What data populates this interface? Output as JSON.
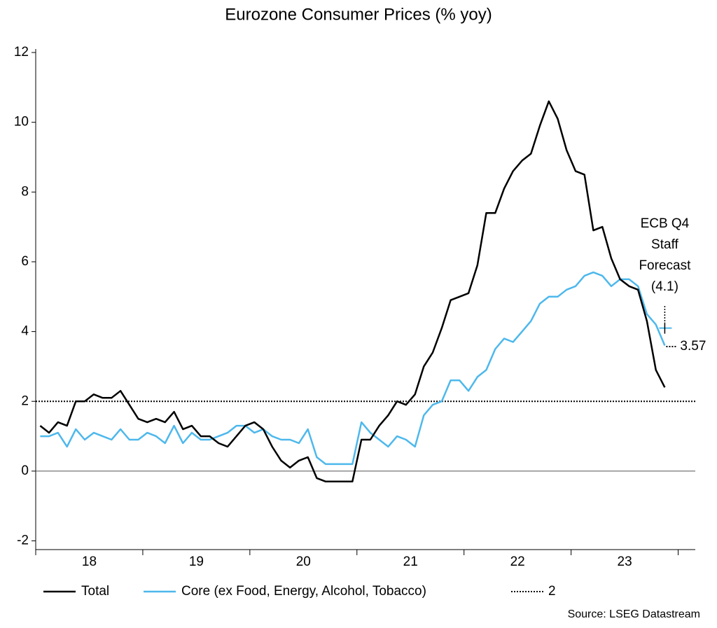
{
  "chart_data": {
    "type": "line",
    "title": "Eurozone Consumer Prices (% yoy)",
    "x": [
      18.042,
      18.125,
      18.208,
      18.292,
      18.375,
      18.458,
      18.542,
      18.625,
      18.708,
      18.792,
      18.875,
      18.958,
      19.042,
      19.125,
      19.208,
      19.292,
      19.375,
      19.458,
      19.542,
      19.625,
      19.708,
      19.792,
      19.875,
      19.958,
      20.042,
      20.125,
      20.208,
      20.292,
      20.375,
      20.458,
      20.542,
      20.625,
      20.708,
      20.792,
      20.875,
      20.958,
      21.042,
      21.125,
      21.208,
      21.292,
      21.375,
      21.458,
      21.542,
      21.625,
      21.708,
      21.792,
      21.875,
      21.958,
      22.042,
      22.125,
      22.208,
      22.292,
      22.375,
      22.458,
      22.542,
      22.625,
      22.708,
      22.792,
      22.875,
      22.958,
      23.042,
      23.125,
      23.208,
      23.292,
      23.375,
      23.458,
      23.542,
      23.625,
      23.708,
      23.792,
      23.875
    ],
    "series": [
      {
        "name": "Total",
        "color": "#000000",
        "values": [
          1.3,
          1.1,
          1.4,
          1.3,
          2.0,
          2.0,
          2.2,
          2.1,
          2.1,
          2.3,
          1.9,
          1.5,
          1.4,
          1.5,
          1.4,
          1.7,
          1.2,
          1.3,
          1.0,
          1.0,
          0.8,
          0.7,
          1.0,
          1.3,
          1.4,
          1.2,
          0.7,
          0.3,
          0.1,
          0.3,
          0.4,
          -0.2,
          -0.3,
          -0.3,
          -0.3,
          -0.3,
          0.9,
          0.9,
          1.3,
          1.6,
          2.0,
          1.9,
          2.2,
          3.0,
          3.4,
          4.1,
          4.9,
          5.0,
          5.1,
          5.9,
          7.4,
          7.4,
          8.1,
          8.6,
          8.9,
          9.1,
          9.9,
          10.6,
          10.1,
          9.2,
          8.6,
          8.5,
          6.9,
          7.0,
          6.1,
          5.5,
          5.3,
          5.2,
          4.3,
          2.9,
          2.4
        ]
      },
      {
        "name": "Core (ex Food, Energy, Alcohol, Tobacco)",
        "color": "#4db8ec",
        "values": [
          1.0,
          1.0,
          1.1,
          0.7,
          1.2,
          0.9,
          1.1,
          1.0,
          0.9,
          1.2,
          0.9,
          0.9,
          1.1,
          1.0,
          0.8,
          1.3,
          0.8,
          1.1,
          0.9,
          0.9,
          1.0,
          1.1,
          1.3,
          1.3,
          1.1,
          1.2,
          1.0,
          0.9,
          0.9,
          0.8,
          1.2,
          0.4,
          0.2,
          0.2,
          0.2,
          0.2,
          1.4,
          1.1,
          0.9,
          0.7,
          1.0,
          0.9,
          0.7,
          1.6,
          1.9,
          2.0,
          2.6,
          2.6,
          2.3,
          2.7,
          2.9,
          3.5,
          3.8,
          3.7,
          4.0,
          4.3,
          4.8,
          5.0,
          5.0,
          5.2,
          5.3,
          5.6,
          5.7,
          5.6,
          5.3,
          5.5,
          5.5,
          5.3,
          4.5,
          4.2,
          3.6
        ]
      }
    ],
    "reference_line": {
      "name": "2",
      "value": 2
    },
    "forecast": {
      "value": 4.1,
      "label_lines": [
        "ECB Q4",
        "Staff",
        "Forecast",
        "(4.1)"
      ]
    },
    "end_label": {
      "value": 3.57,
      "label": "3.57"
    },
    "xlim": [
      18,
      24.16
    ],
    "xticks": [
      18,
      19,
      20,
      21,
      22,
      23,
      24
    ],
    "year_labels": [
      {
        "value": 18.5,
        "label": "18"
      },
      {
        "value": 19.5,
        "label": "19"
      },
      {
        "value": 20.5,
        "label": "20"
      },
      {
        "value": 21.5,
        "label": "21"
      },
      {
        "value": 22.5,
        "label": "22"
      },
      {
        "value": 23.5,
        "label": "23"
      }
    ],
    "ylim": [
      -2.25,
      12.1
    ],
    "yticks": [
      -2,
      0,
      2,
      4,
      6,
      8,
      10,
      12
    ],
    "source": "Source: LSEG Datastream"
  }
}
